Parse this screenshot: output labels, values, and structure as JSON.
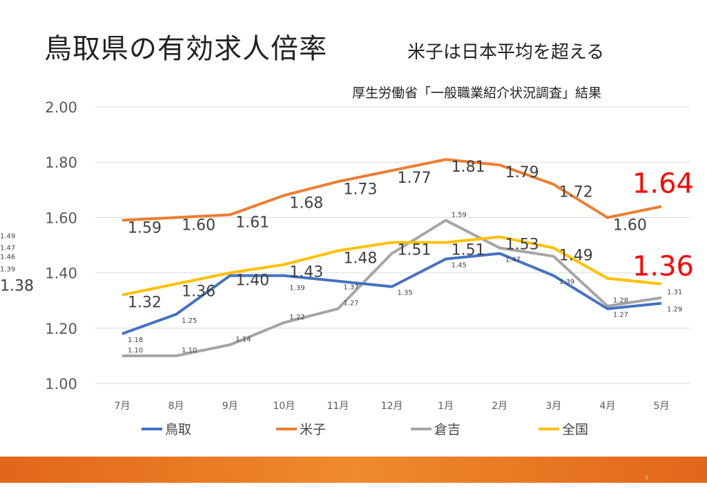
{
  "title": "鳥取県の有効求人倍率",
  "subtitle": "米子は日本平均を超える",
  "source": "厚生労働省「一般職業紹介状況調査」結果",
  "page_number": "5",
  "chart_data": {
    "type": "line",
    "categories": [
      "7月",
      "8月",
      "9月",
      "10月",
      "11月",
      "12月",
      "1月",
      "2月",
      "3月",
      "4月",
      "5月"
    ],
    "ylim": [
      1.0,
      2.0
    ],
    "yticks": [
      "1.00",
      "1.20",
      "1.40",
      "1.60",
      "1.80",
      "2.00"
    ],
    "grid": true,
    "legend_position": "bottom",
    "series": [
      {
        "name": "鳥取",
        "color": "#4472c4",
        "label_size": "small",
        "values": [
          1.18,
          1.25,
          1.39,
          1.39,
          1.37,
          1.35,
          1.45,
          1.47,
          1.39,
          1.27,
          1.29
        ]
      },
      {
        "name": "米子",
        "color": "#ed7d31",
        "label_size": "large",
        "values": [
          1.59,
          1.6,
          1.61,
          1.68,
          1.73,
          1.77,
          1.81,
          1.79,
          1.72,
          1.6,
          1.64
        ]
      },
      {
        "name": "倉吉",
        "color": "#a5a5a5",
        "label_size": "small",
        "values": [
          1.1,
          1.1,
          1.14,
          1.22,
          1.27,
          1.47,
          1.59,
          1.49,
          1.46,
          1.28,
          1.31
        ]
      },
      {
        "name": "全国",
        "color": "#ffc000",
        "label_size": "large",
        "values": [
          1.32,
          1.36,
          1.4,
          1.43,
          1.48,
          1.51,
          1.51,
          1.53,
          1.49,
          1.38,
          1.36
        ]
      }
    ],
    "highlight_color": "#ff0000"
  }
}
